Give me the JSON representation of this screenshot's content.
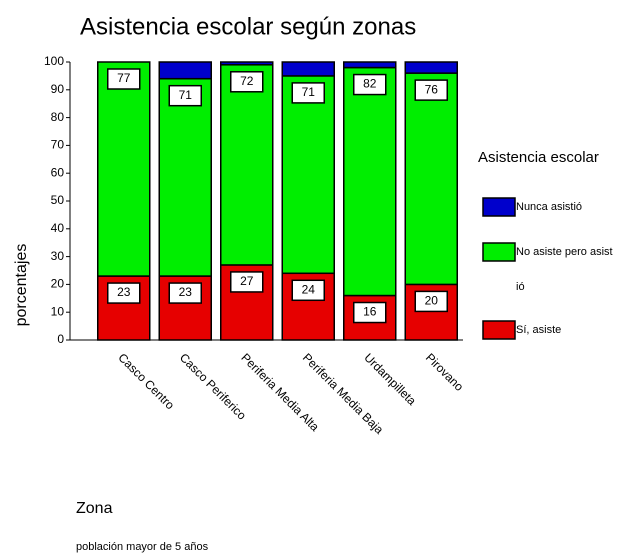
{
  "chart_data": {
    "type": "stacked_bar",
    "title": "Asistencia escolar según zonas",
    "y_label": "porcentajes",
    "x_label": "Zona",
    "footnote": "población mayor de 5 años",
    "legend_title": "Asistencia escolar",
    "categories": [
      "Casco Centro",
      "Casco Periferico",
      "Periferia Media Alta",
      "Periferia Media Baja",
      "Urdampilleta",
      "Pirovano"
    ],
    "series": [
      {
        "name": "Sí, asiste",
        "color": "#e60000",
        "values": [
          23,
          23,
          27,
          24,
          16,
          20
        ],
        "show_labels": true
      },
      {
        "name": "No asiste pero asistió",
        "color": "#00ee00",
        "values": [
          77,
          71,
          72,
          71,
          82,
          76
        ],
        "show_labels": true
      },
      {
        "name": "Nunca asistió",
        "color": "#0000cc",
        "values": [
          0,
          6,
          1,
          5,
          2,
          4
        ],
        "show_labels": false
      }
    ],
    "legend_order": [
      2,
      1,
      0
    ],
    "ylim": [
      0,
      100
    ],
    "yticks": [
      0,
      10,
      20,
      30,
      40,
      50,
      60,
      70,
      80,
      90,
      100
    ]
  }
}
